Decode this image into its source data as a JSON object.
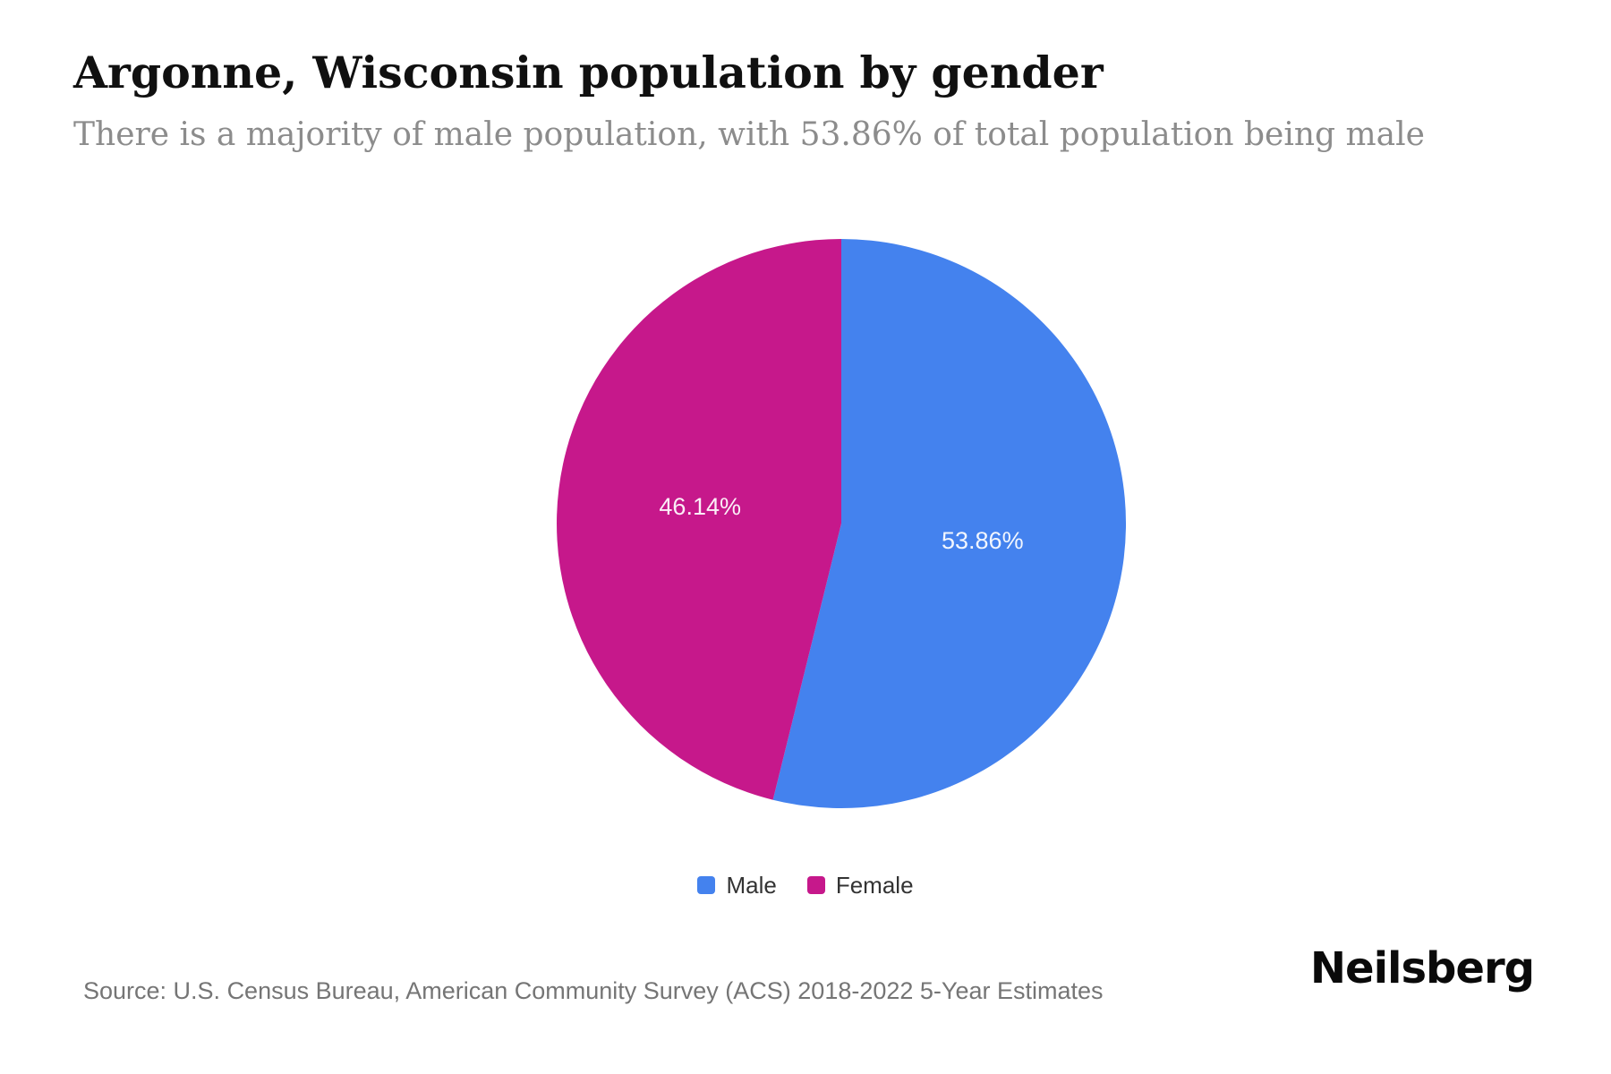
{
  "header": {
    "title": "Argonne, Wisconsin population by gender",
    "subtitle": "There is a majority of male population, with 53.86% of total population being male"
  },
  "chart_data": {
    "type": "pie",
    "title": "Argonne, Wisconsin population by gender",
    "start_angle_deg": 0,
    "direction": "clockwise",
    "label_distance_ratio": 0.5,
    "legend_position": "bottom",
    "slices": [
      {
        "label": "Male",
        "value": 53.86,
        "display": "53.86%",
        "color": "#4482EE"
      },
      {
        "label": "Female",
        "value": 46.14,
        "display": "46.14%",
        "color": "#C6188B"
      }
    ]
  },
  "footer": {
    "source": "Source: U.S. Census Bureau, American Community Survey (ACS) 2018-2022 5-Year Estimates",
    "logo": "Neilsberg"
  },
  "colors": {
    "male": "#4482EE",
    "female": "#C6188B",
    "title_text": "#101010",
    "subtitle_text": "#8c8c8c",
    "legend_text": "#333333",
    "source_text": "#757575",
    "slice_label_text": "#FFFFFF"
  }
}
